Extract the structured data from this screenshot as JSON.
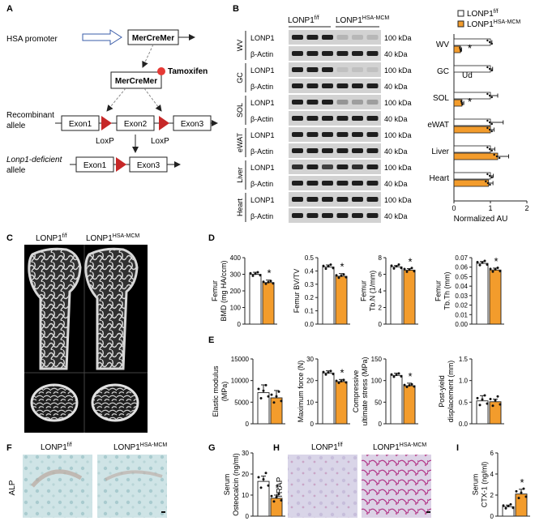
{
  "colors": {
    "control": "#ffffff",
    "treated": "#f39c2c",
    "edge": "#222222",
    "lox": "#c62828",
    "tam": "#e53935"
  },
  "panels": {
    "A": "A",
    "B": "B",
    "C": "C",
    "D": "D",
    "E": "E",
    "F": "F",
    "G": "G",
    "H": "H",
    "I": "I"
  },
  "schematic": {
    "promoter": "HSA promoter",
    "gene": "MerCreMer",
    "gene2": "MerCreMer",
    "tamoxifen": "Tamoxifen",
    "recombinant_1": "Recombinant",
    "recombinant_2": "allele",
    "exon1": "Exon1",
    "exon2": "Exon2",
    "exon3": "Exon3",
    "exon1b": "Exon1",
    "exon3b": "Exon3",
    "loxp1": "LoxP",
    "loxp2": "LoxP",
    "deficient_1": "Lonp1-deficient",
    "deficient_2": "allele"
  },
  "groups": {
    "control_base": "LONP1",
    "control_sup": "f/f",
    "treated_base": "LONP1",
    "treated_sup": "HSA-MCM"
  },
  "western": {
    "tissues": [
      "WV",
      "GC",
      "SOL",
      "eWAT",
      "Liver",
      "Heart"
    ],
    "rows": [
      [
        "LONP1",
        "100 kDa"
      ],
      [
        "β-Actin",
        "40 kDa"
      ]
    ]
  },
  "fig_c": {
    "ctrl_base": "LONP1",
    "ctrl_sup": "f/f",
    "trt_base": "LONP1",
    "trt_sup": "HSA-MCM"
  },
  "fig_f": {
    "ylabel": "ALP",
    "ctrl_base": "LONP1",
    "ctrl_sup": "f/f",
    "trt_base": "LONP1",
    "trt_sup": "HSA-MCM"
  },
  "fig_h": {
    "ylabel": "TRAP",
    "ctrl_base": "LONP1",
    "ctrl_sup": "f/f",
    "trt_base": "LONP1",
    "trt_sup": "HSA-MCM"
  },
  "chart_data": [
    {
      "id": "B-quant",
      "type": "bar",
      "orientation": "horizontal",
      "categories": [
        "WV",
        "GC",
        "SOL",
        "eWAT",
        "Liver",
        "Heart"
      ],
      "series": [
        {
          "name": "LONP1 f/f",
          "values": [
            1.0,
            1.0,
            1.0,
            1.0,
            1.0,
            1.0
          ]
        },
        {
          "name": "LONP1 HSA-MCM",
          "values": [
            0.18,
            0,
            0.22,
            1.0,
            1.2,
            0.95
          ]
        }
      ],
      "errors": [
        [
          0.04,
          0.06,
          0.2,
          0.35,
          0.12,
          0.08
        ],
        [
          0.03,
          0,
          0.05,
          0.1,
          0.3,
          0.12
        ]
      ],
      "annotations": [
        "*",
        "Ud",
        "*",
        "",
        "",
        ""
      ],
      "xlabel": "Normalized AU",
      "xlim": [
        0,
        2
      ],
      "xticks": [
        "0",
        "1",
        "2"
      ]
    },
    {
      "id": "D1",
      "type": "bar",
      "ylabel_lines": [
        "Femur",
        "BMD (mg HA/ccm)"
      ],
      "ylim": [
        0,
        400
      ],
      "ticks": [
        "0",
        "100",
        "200",
        "300",
        "400"
      ],
      "values": [
        300,
        250
      ],
      "errors": [
        12,
        15
      ],
      "star": "*"
    },
    {
      "id": "D2",
      "type": "bar",
      "ylabel_lines": [
        "Femur BV/TV"
      ],
      "ylim": [
        0,
        0.5
      ],
      "ticks": [
        "0.0",
        "0.1",
        "0.2",
        "0.3",
        "0.4",
        "0.5"
      ],
      "values": [
        0.43,
        0.36
      ],
      "errors": [
        0.015,
        0.02
      ],
      "star": "*"
    },
    {
      "id": "D3",
      "type": "bar",
      "ylabel_lines": [
        "Femur",
        "Tb.N (1/mm)"
      ],
      "ylim": [
        0,
        8
      ],
      "ticks": [
        "0",
        "2",
        "4",
        "6",
        "8"
      ],
      "values": [
        6.9,
        6.5
      ],
      "errors": [
        0.15,
        0.18
      ],
      "star": "*"
    },
    {
      "id": "D4",
      "type": "bar",
      "ylabel_lines": [
        "Femur",
        "Tb.Th (mm)"
      ],
      "ylim": [
        0,
        0.07
      ],
      "ticks": [
        "0.00",
        "0.01",
        "0.02",
        "0.03",
        "0.04",
        "0.05",
        "0.06",
        "0.07"
      ],
      "values": [
        0.064,
        0.057
      ],
      "errors": [
        0.002,
        0.002
      ],
      "star": "*"
    },
    {
      "id": "E1",
      "type": "bar",
      "ylabel_lines": [
        "Elastic modulus",
        "(MPa)"
      ],
      "ylim": [
        0,
        15000
      ],
      "ticks": [
        "0",
        "5000",
        "10000",
        "15000"
      ],
      "values": [
        7200,
        6000
      ],
      "errors": [
        1800,
        1700
      ],
      "star": ""
    },
    {
      "id": "E2",
      "type": "bar",
      "ylabel_lines": [
        "Maximum force (N)"
      ],
      "ylim": [
        0,
        30
      ],
      "ticks": [
        "0",
        "10",
        "20",
        "30"
      ],
      "values": [
        23.5,
        19.5
      ],
      "errors": [
        1.0,
        1.0
      ],
      "star": "*"
    },
    {
      "id": "E3",
      "type": "bar",
      "ylabel_lines": [
        "Compressive",
        "ultimate stress (MPa)"
      ],
      "ylim": [
        0,
        150
      ],
      "ticks": [
        "0",
        "50",
        "100",
        "150"
      ],
      "values": [
        112,
        88
      ],
      "errors": [
        5,
        6
      ],
      "star": "*"
    },
    {
      "id": "E4",
      "type": "bar",
      "ylabel_lines": [
        "Post-yield",
        "displacement (mm)"
      ],
      "ylim": [
        0,
        1.5
      ],
      "ticks": [
        "0.0",
        "0.5",
        "1.0",
        "1.5"
      ],
      "values": [
        0.53,
        0.51
      ],
      "errors": [
        0.12,
        0.06
      ],
      "star": ""
    },
    {
      "id": "G",
      "type": "bar",
      "ylabel_lines": [
        "Serum",
        "Osteocalcin (ng/ml)"
      ],
      "ylim": [
        0,
        30
      ],
      "ticks": [
        "0",
        "10",
        "20",
        "30"
      ],
      "values": [
        16.5,
        8.5
      ],
      "errors": [
        2.5,
        1.5
      ],
      "star": "*"
    },
    {
      "id": "I",
      "type": "bar",
      "ylabel_lines": [
        "Serum",
        "CTX-1 (ng/ml)"
      ],
      "ylim": [
        0,
        6
      ],
      "ticks": [
        "0",
        "2",
        "4",
        "6"
      ],
      "values": [
        0.9,
        2.1
      ],
      "errors": [
        0.15,
        0.45
      ],
      "star": "*"
    }
  ]
}
